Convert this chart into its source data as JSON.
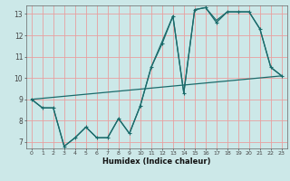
{
  "line1_x": [
    0,
    1,
    2,
    3,
    4,
    5,
    6,
    7,
    8,
    9,
    10,
    11,
    12,
    13,
    14,
    15,
    16,
    17,
    18,
    19,
    20,
    21,
    22,
    23
  ],
  "line1_y": [
    9.0,
    8.6,
    8.6,
    6.8,
    7.2,
    7.7,
    7.2,
    7.2,
    8.1,
    7.4,
    8.7,
    10.5,
    11.6,
    12.9,
    9.3,
    13.2,
    13.3,
    12.6,
    13.1,
    13.1,
    13.1,
    12.3,
    10.5,
    10.1
  ],
  "line2_x": [
    0,
    1,
    2,
    3,
    4,
    5,
    6,
    7,
    8,
    9,
    10,
    11,
    12,
    13,
    14,
    15,
    16,
    17,
    18,
    19,
    20,
    21,
    22,
    23
  ],
  "line2_y": [
    9.0,
    8.6,
    8.6,
    6.8,
    7.2,
    7.7,
    7.2,
    7.2,
    8.1,
    7.4,
    8.7,
    10.5,
    11.7,
    12.9,
    9.3,
    13.2,
    13.3,
    12.7,
    13.1,
    13.1,
    13.1,
    12.3,
    10.5,
    10.1
  ],
  "line3_x": [
    0,
    23
  ],
  "line3_y": [
    9.0,
    10.1
  ],
  "line_color": "#1a6b6b",
  "bg_color": "#cce8e8",
  "grid_color": "#e8a0a0",
  "xlabel": "Humidex (Indice chaleur)",
  "xlim": [
    -0.5,
    23.5
  ],
  "ylim": [
    6.7,
    13.4
  ],
  "yticks": [
    7,
    8,
    9,
    10,
    11,
    12,
    13
  ],
  "xticks": [
    0,
    1,
    2,
    3,
    4,
    5,
    6,
    7,
    8,
    9,
    10,
    11,
    12,
    13,
    14,
    15,
    16,
    17,
    18,
    19,
    20,
    21,
    22,
    23
  ]
}
